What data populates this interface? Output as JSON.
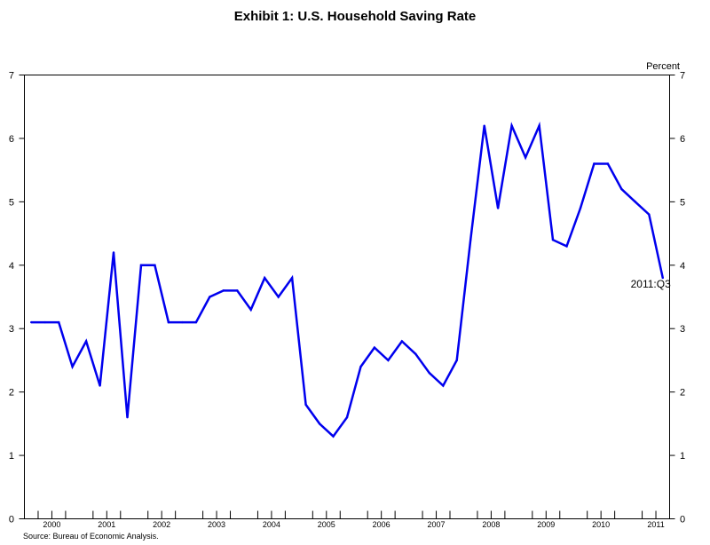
{
  "chart_data": {
    "type": "line",
    "title": "Exhibit 1:  U.S. Household Saving Rate",
    "ylabel": "Percent",
    "source": "Source: Bureau of Economic Analysis.",
    "ylim": [
      0,
      7
    ],
    "yticks": [
      "0",
      "1",
      "2",
      "3",
      "4",
      "5",
      "6",
      "7"
    ],
    "xlim": [
      2000.0,
      2011.75
    ],
    "xticks": [
      "2000",
      "2001",
      "2002",
      "2003",
      "2004",
      "2005",
      "2006",
      "2007",
      "2008",
      "2009",
      "2010",
      "2011"
    ],
    "annotation": "2011:Q3",
    "grid": false,
    "color": "#0000ee",
    "series": [
      {
        "x": [
          "2000:Q1",
          "2000:Q2",
          "2000:Q3",
          "2000:Q4",
          "2001:Q1",
          "2001:Q2",
          "2001:Q3",
          "2001:Q4",
          "2002:Q1",
          "2002:Q2",
          "2002:Q3",
          "2002:Q4",
          "2003:Q1",
          "2003:Q2",
          "2003:Q3",
          "2003:Q4",
          "2004:Q1",
          "2004:Q2",
          "2004:Q3",
          "2004:Q4",
          "2005:Q1",
          "2005:Q2",
          "2005:Q3",
          "2005:Q4",
          "2006:Q1",
          "2006:Q2",
          "2006:Q3",
          "2006:Q4",
          "2007:Q1",
          "2007:Q2",
          "2007:Q3",
          "2007:Q4",
          "2008:Q1",
          "2008:Q2",
          "2008:Q3",
          "2008:Q4",
          "2009:Q1",
          "2009:Q2",
          "2009:Q3",
          "2009:Q4",
          "2010:Q1",
          "2010:Q2",
          "2010:Q3",
          "2010:Q4",
          "2011:Q1",
          "2011:Q2",
          "2011:Q3"
        ],
        "values": [
          3.1,
          3.1,
          3.1,
          2.4,
          2.8,
          2.1,
          4.2,
          1.6,
          4.0,
          4.0,
          3.1,
          3.1,
          3.1,
          3.5,
          3.6,
          3.6,
          3.3,
          3.8,
          3.5,
          3.8,
          1.8,
          1.5,
          1.3,
          1.6,
          2.4,
          2.7,
          2.5,
          2.8,
          2.6,
          2.3,
          2.1,
          2.5,
          4.4,
          6.2,
          4.9,
          6.2,
          5.7,
          6.2,
          4.4,
          4.3,
          4.9,
          5.6,
          5.6,
          5.2,
          5.0,
          4.8,
          3.8
        ]
      }
    ]
  }
}
